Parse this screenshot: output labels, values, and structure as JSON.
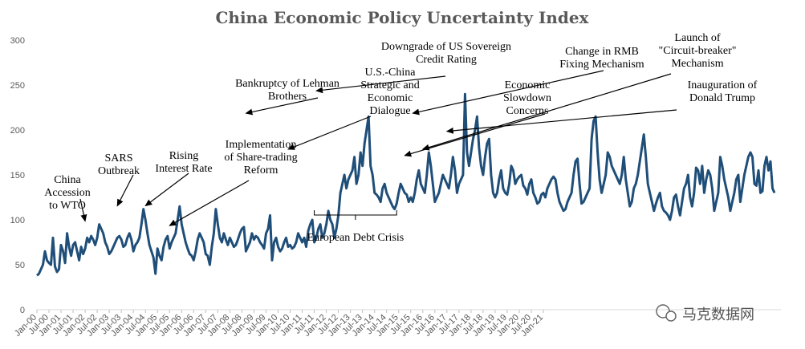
{
  "colors": {
    "line": "#1f4e79",
    "axis": "#d9d9d9",
    "text": "#595959",
    "arrow": "#000000"
  },
  "chart_data": {
    "type": "line",
    "title": "China Economic Policy Uncertainty Index",
    "xlabel": "",
    "ylabel": "",
    "ylim": [
      0,
      300
    ],
    "yticks": [
      0,
      50,
      100,
      150,
      200,
      250,
      300
    ],
    "grid": false,
    "x_tick_labels": [
      "Jan-00",
      "Jul-00",
      "Jan-01",
      "Jul-01",
      "Jan-02",
      "Jul-02",
      "Jan-03",
      "Jul-03",
      "Jan-04",
      "Jul-04",
      "Jan-05",
      "Jul-05",
      "Jan-06",
      "Jul-06",
      "Jan-07",
      "Jul-07",
      "Jan-08",
      "Jul-08",
      "Jan-09",
      "Jul-09",
      "Jan-10",
      "Jul-10",
      "Jan-11",
      "Jul-11",
      "Jan-12",
      "Jul-12",
      "Jan-13",
      "Jul-13",
      "Jan-14",
      "Jul-14",
      "Jan-15",
      "Jul-15",
      "Jan-16",
      "Jul-16",
      "Jan-17",
      "Jul-17",
      "Jan-18",
      "Jul-18",
      "Jan-19",
      "Jul-19",
      "Jan-20",
      "Jul-20",
      "Jan-21"
    ],
    "series": [
      {
        "start": "Jan-00",
        "frequency": "monthly",
        "values": [
          38,
          40,
          45,
          50,
          65,
          55,
          52,
          50,
          80,
          48,
          42,
          45,
          72,
          65,
          52,
          85,
          70,
          60,
          72,
          75,
          65,
          55,
          70,
          62,
          68,
          80,
          75,
          82,
          78,
          72,
          80,
          95,
          90,
          85,
          75,
          70,
          62,
          65,
          70,
          75,
          80,
          82,
          78,
          70,
          72,
          80,
          85,
          78,
          65,
          72,
          75,
          80,
          95,
          112,
          100,
          85,
          72,
          65,
          58,
          40,
          68,
          60,
          55,
          70,
          78,
          82,
          68,
          75,
          80,
          85,
          100,
          115,
          95,
          85,
          75,
          68,
          62,
          60,
          55,
          65,
          78,
          85,
          80,
          75,
          62,
          60,
          50,
          70,
          85,
          112,
          95,
          80,
          75,
          85,
          78,
          72,
          80,
          75,
          70,
          72,
          78,
          85,
          90,
          92,
          65,
          70,
          75,
          85,
          78,
          82,
          80,
          75,
          72,
          68,
          85,
          90,
          105,
          55,
          75,
          80,
          70,
          65,
          68,
          75,
          80,
          70,
          72,
          68,
          70,
          75,
          85,
          80,
          75,
          80,
          70,
          88,
          95,
          100,
          75,
          80,
          90,
          95,
          80,
          85,
          95,
          110,
          100,
          95,
          80,
          90,
          105,
          130,
          140,
          150,
          135,
          145,
          150,
          155,
          170,
          140,
          150,
          175,
          160,
          185,
          200,
          215,
          160,
          150,
          130,
          128,
          125,
          120,
          135,
          140,
          130,
          125,
          120,
          115,
          112,
          118,
          130,
          140,
          135,
          130,
          128,
          120,
          125,
          120,
          130,
          145,
          155,
          140,
          135,
          130,
          150,
          175,
          160,
          140,
          120,
          125,
          130,
          140,
          150,
          145,
          140,
          135,
          150,
          170,
          155,
          130,
          140,
          145,
          150,
          240,
          175,
          160,
          175,
          190,
          200,
          215,
          180,
          160,
          150,
          170,
          185,
          190,
          150,
          130,
          125,
          130,
          145,
          155,
          135,
          130,
          128,
          140,
          160,
          155,
          140,
          145,
          148,
          150,
          138,
          135,
          128,
          140,
          145,
          130,
          125,
          118,
          120,
          128,
          130,
          125,
          135,
          140,
          145,
          148,
          145,
          130,
          120,
          115,
          110,
          112,
          120,
          125,
          130,
          150,
          165,
          168,
          140,
          118,
          120,
          125,
          130,
          135,
          190,
          210,
          215,
          175,
          145,
          130,
          140,
          150,
          175,
          170,
          160,
          155,
          150,
          145,
          140,
          150,
          170,
          145,
          130,
          115,
          120,
          135,
          140,
          150,
          165,
          180,
          195,
          170,
          140,
          130,
          120,
          110,
          118,
          125,
          130,
          115,
          110,
          108,
          105,
          100,
          110,
          125,
          128,
          115,
          105,
          120,
          135,
          140,
          150,
          125,
          115,
          130,
          158,
          155,
          140,
          160,
          130,
          145,
          155,
          150,
          135,
          110,
          120,
          130,
          170,
          160,
          145,
          135,
          125,
          110,
          120,
          130,
          145,
          150,
          120,
          135,
          150,
          160,
          170,
          175,
          170,
          140,
          138,
          155,
          130,
          132,
          160,
          170,
          155,
          165,
          135,
          130
        ]
      }
    ],
    "annotations": [
      {
        "lines": [
          "China",
          "Accession",
          "to WTO"
        ],
        "at": "Jan-02",
        "value": 95
      },
      {
        "lines": [
          "SARS",
          "Outbreak"
        ],
        "at": "May-03",
        "value": 112
      },
      {
        "lines": [
          "Rising",
          "Interest Rate"
        ],
        "at": "Jul-04",
        "value": 112
      },
      {
        "lines": [
          "Implementation",
          "of Share-trading",
          "Reform"
        ],
        "at": "Jul-05",
        "value": 90
      },
      {
        "lines": [
          "Bankruptcy of Lehman",
          "Brothers"
        ],
        "at": "Sep-08",
        "value": 215
      },
      {
        "lines": [
          "U.S.-China",
          "Strategic and",
          "Economic",
          "Dialogue"
        ],
        "at": "Jun-10",
        "value": 175
      },
      {
        "lines": [
          "Downgrade of US Sovereign",
          "Credit Rating"
        ],
        "at": "Aug-11",
        "value": 240
      },
      {
        "lines": [
          "Economic",
          "Slowdown",
          "Concerns"
        ],
        "at": "Apr-15",
        "value": 168
      },
      {
        "lines": [
          "Change in RMB",
          "Fixing Mechanism"
        ],
        "at": "Aug-15",
        "value": 215
      },
      {
        "lines": [
          "Launch of",
          "\"Circuit-breaker\"",
          "Mechanism"
        ],
        "at": "Jan-16",
        "value": 175
      },
      {
        "lines": [
          "Inauguration of",
          "Donald Trump"
        ],
        "at": "Jan-17",
        "value": 195
      }
    ],
    "bracket_label": "European Debt Crisis",
    "bracket_range": [
      "Jul-11",
      "Dec-14"
    ]
  },
  "watermark": {
    "text": "马克数据网",
    "icon": "wechat-icon"
  }
}
